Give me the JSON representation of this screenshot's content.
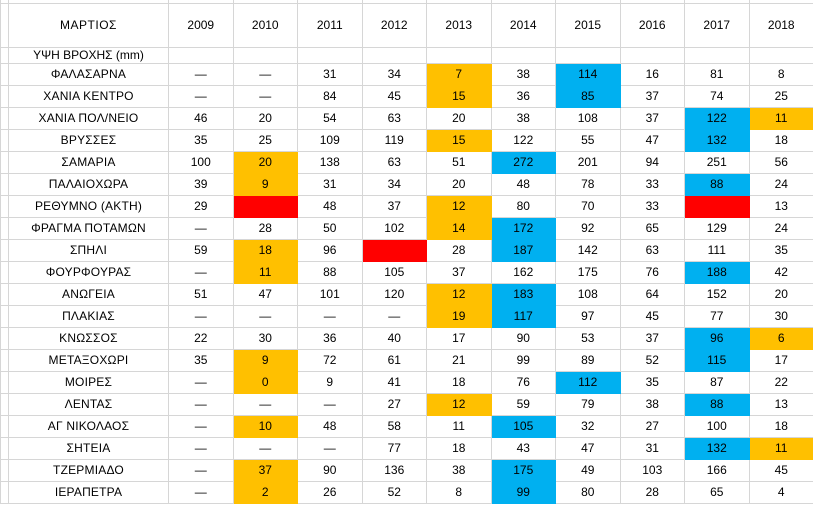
{
  "sheet": {
    "title": "ΜΑΡΤΙΟΣ",
    "subtitle": "ΥΨΗ ΒΡΟΧΗΣ (mm)",
    "years": [
      "2009",
      "2010",
      "2011",
      "2012",
      "2013",
      "2014",
      "2015",
      "2016",
      "2017",
      "2018"
    ],
    "colors": {
      "orange": "#FFC000",
      "blue": "#00B0F0",
      "red": "#FF0000",
      "gridline": "#D6D6D6",
      "text": "#000000"
    },
    "rows": [
      {
        "station": "ΦΑΛΑΣΑΡΝΑ",
        "values": [
          "—",
          "—",
          "31",
          "34",
          "7",
          "38",
          "114",
          "16",
          "81",
          "8"
        ],
        "colors": [
          null,
          null,
          null,
          null,
          "orange",
          null,
          "blue",
          null,
          null,
          null
        ]
      },
      {
        "station": "ΧΑΝΙΑ ΚΕΝΤΡΟ",
        "values": [
          "—",
          "—",
          "84",
          "45",
          "15",
          "36",
          "85",
          "37",
          "74",
          "25"
        ],
        "colors": [
          null,
          null,
          null,
          null,
          "orange",
          null,
          "blue",
          null,
          null,
          null
        ]
      },
      {
        "station": "ΧΑΝΙΑ ΠΟΛ/ΝΕΙΟ",
        "values": [
          "46",
          "20",
          "54",
          "63",
          "20",
          "38",
          "108",
          "37",
          "122",
          "11"
        ],
        "colors": [
          null,
          null,
          null,
          null,
          null,
          null,
          null,
          null,
          "blue",
          "orange"
        ]
      },
      {
        "station": "ΒΡΥΣΣΕΣ",
        "values": [
          "35",
          "25",
          "109",
          "119",
          "15",
          "122",
          "55",
          "47",
          "132",
          "18"
        ],
        "colors": [
          null,
          null,
          null,
          null,
          "orange",
          null,
          null,
          null,
          "blue",
          null
        ]
      },
      {
        "station": "ΣΑΜΑΡΙΑ",
        "values": [
          "100",
          "20",
          "138",
          "63",
          "51",
          "272",
          "201",
          "94",
          "251",
          "56"
        ],
        "colors": [
          null,
          "orange",
          null,
          null,
          null,
          "blue",
          null,
          null,
          null,
          null
        ]
      },
      {
        "station": "ΠΑΛΑΙΟΧΩΡΑ",
        "values": [
          "39",
          "9",
          "31",
          "34",
          "20",
          "48",
          "78",
          "33",
          "88",
          "24"
        ],
        "colors": [
          null,
          "orange",
          null,
          null,
          null,
          null,
          null,
          null,
          "blue",
          null
        ]
      },
      {
        "station": "ΡΕΘΥΜΝΟ (ΑΚΤΗ)",
        "values": [
          "29",
          "",
          "48",
          "37",
          "12",
          "80",
          "70",
          "33",
          "",
          "13"
        ],
        "colors": [
          null,
          "red",
          null,
          null,
          "orange",
          null,
          null,
          null,
          "red",
          null
        ]
      },
      {
        "station": "ΦΡΑΓΜΑ ΠΟΤΑΜΩΝ",
        "values": [
          "—",
          "28",
          "50",
          "102",
          "14",
          "172",
          "92",
          "65",
          "129",
          "24"
        ],
        "colors": [
          null,
          null,
          null,
          null,
          "orange",
          "blue",
          null,
          null,
          null,
          null
        ]
      },
      {
        "station": "ΣΠΗΛΙ",
        "values": [
          "59",
          "18",
          "96",
          "",
          "28",
          "187",
          "142",
          "63",
          "111",
          "35"
        ],
        "colors": [
          null,
          "orange",
          null,
          "red",
          null,
          "blue",
          null,
          null,
          null,
          null
        ]
      },
      {
        "station": "ΦΟΥΡΦΟΥΡΑΣ",
        "values": [
          "—",
          "11",
          "88",
          "105",
          "37",
          "162",
          "175",
          "76",
          "188",
          "42"
        ],
        "colors": [
          null,
          "orange",
          null,
          null,
          null,
          null,
          null,
          null,
          "blue",
          null
        ]
      },
      {
        "station": "ΑΝΩΓΕΙΑ",
        "values": [
          "51",
          "47",
          "101",
          "120",
          "12",
          "183",
          "108",
          "64",
          "152",
          "20"
        ],
        "colors": [
          null,
          null,
          null,
          null,
          "orange",
          "blue",
          null,
          null,
          null,
          null
        ]
      },
      {
        "station": "ΠΛΑΚΙΑΣ",
        "values": [
          "—",
          "—",
          "—",
          "—",
          "19",
          "117",
          "97",
          "45",
          "77",
          "30"
        ],
        "colors": [
          null,
          null,
          null,
          null,
          "orange",
          "blue",
          null,
          null,
          null,
          null
        ]
      },
      {
        "station": "ΚΝΩΣΣΟΣ",
        "values": [
          "22",
          "30",
          "36",
          "40",
          "17",
          "90",
          "53",
          "37",
          "96",
          "6"
        ],
        "colors": [
          null,
          null,
          null,
          null,
          null,
          null,
          null,
          null,
          "blue",
          "orange"
        ]
      },
      {
        "station": "ΜΕΤΑΞΟΧΩΡΙ",
        "values": [
          "35",
          "9",
          "72",
          "61",
          "21",
          "99",
          "89",
          "52",
          "115",
          "17"
        ],
        "colors": [
          null,
          "orange",
          null,
          null,
          null,
          null,
          null,
          null,
          "blue",
          null
        ]
      },
      {
        "station": "ΜΟΙΡΕΣ",
        "values": [
          "—",
          "0",
          "9",
          "41",
          "18",
          "76",
          "112",
          "35",
          "87",
          "22"
        ],
        "colors": [
          null,
          "orange",
          null,
          null,
          null,
          null,
          "blue",
          null,
          null,
          null
        ]
      },
      {
        "station": "ΛΕΝΤΑΣ",
        "values": [
          "—",
          "—",
          "—",
          "27",
          "12",
          "59",
          "79",
          "38",
          "88",
          "13"
        ],
        "colors": [
          null,
          null,
          null,
          null,
          "orange",
          null,
          null,
          null,
          "blue",
          null
        ]
      },
      {
        "station": "ΑΓ ΝΙΚΟΛΑΟΣ",
        "values": [
          "—",
          "10",
          "48",
          "58",
          "11",
          "105",
          "32",
          "27",
          "100",
          "18"
        ],
        "colors": [
          null,
          "orange",
          null,
          null,
          null,
          "blue",
          null,
          null,
          null,
          null
        ]
      },
      {
        "station": "ΣΗΤΕΙΑ",
        "values": [
          "—",
          "—",
          "—",
          "77",
          "18",
          "43",
          "47",
          "31",
          "132",
          "11"
        ],
        "colors": [
          null,
          null,
          null,
          null,
          null,
          null,
          null,
          null,
          "blue",
          "orange"
        ]
      },
      {
        "station": "ΤΖΕΡΜΙΑΔΟ",
        "values": [
          "—",
          "37",
          "90",
          "136",
          "38",
          "175",
          "49",
          "103",
          "166",
          "45"
        ],
        "colors": [
          null,
          "orange",
          null,
          null,
          null,
          "blue",
          null,
          null,
          null,
          null
        ]
      },
      {
        "station": "ΙΕΡΑΠΕΤΡΑ",
        "values": [
          "—",
          "2",
          "26",
          "52",
          "8",
          "99",
          "80",
          "28",
          "65",
          "4"
        ],
        "colors": [
          null,
          "orange",
          null,
          null,
          null,
          "blue",
          null,
          null,
          null,
          null
        ]
      }
    ]
  }
}
